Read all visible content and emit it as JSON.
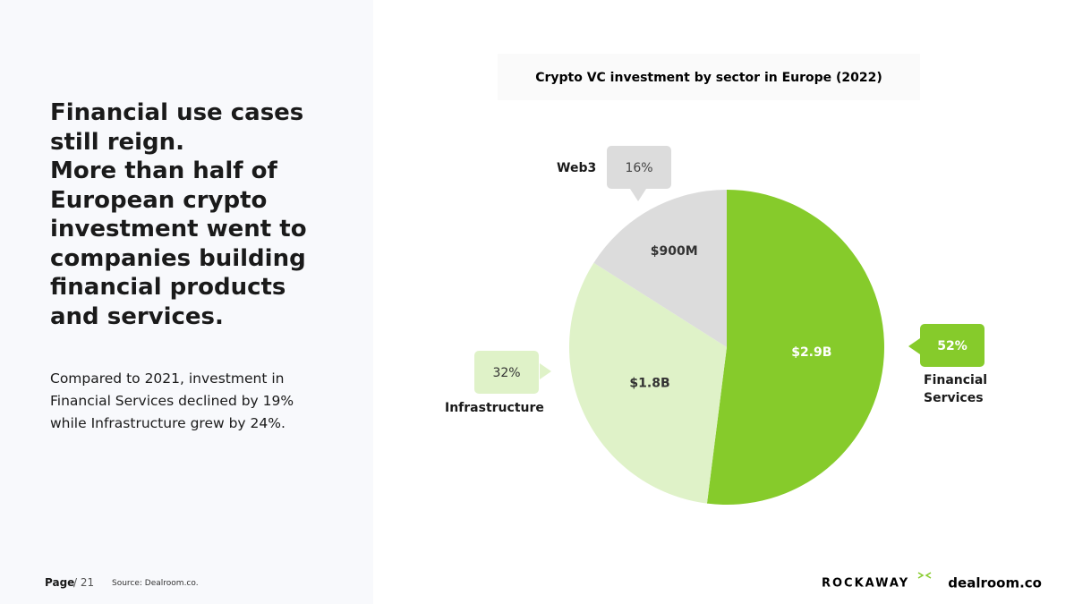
{
  "headline_1": "Financial use cases still reign.",
  "headline_2": "More than half of European crypto investment went to companies building financial products and services.",
  "body": "Compared to 2021, investment in Financial Services declined by 19% while Infrastructure grew by 24%.",
  "footer": {
    "page": "Page",
    "page_number": "/ 21",
    "source": "Source: Dealroom.co."
  },
  "logos": [
    "ROCKAWAY",
    "dealroom.co"
  ],
  "chart_data": {
    "type": "pie",
    "title": "Crypto VC investment by sector in Europe (2022)",
    "categories": [
      "Financial Services",
      "Infrastructure",
      "Web3"
    ],
    "values": [
      52,
      32,
      16
    ],
    "value_labels": [
      "52%",
      "32%",
      "16%"
    ],
    "amount_labels": [
      "$2.9B",
      "$1.8B",
      "$900M"
    ],
    "colors": [
      "#86cb2b",
      "#dff2c8",
      "#dcdcdc"
    ]
  }
}
